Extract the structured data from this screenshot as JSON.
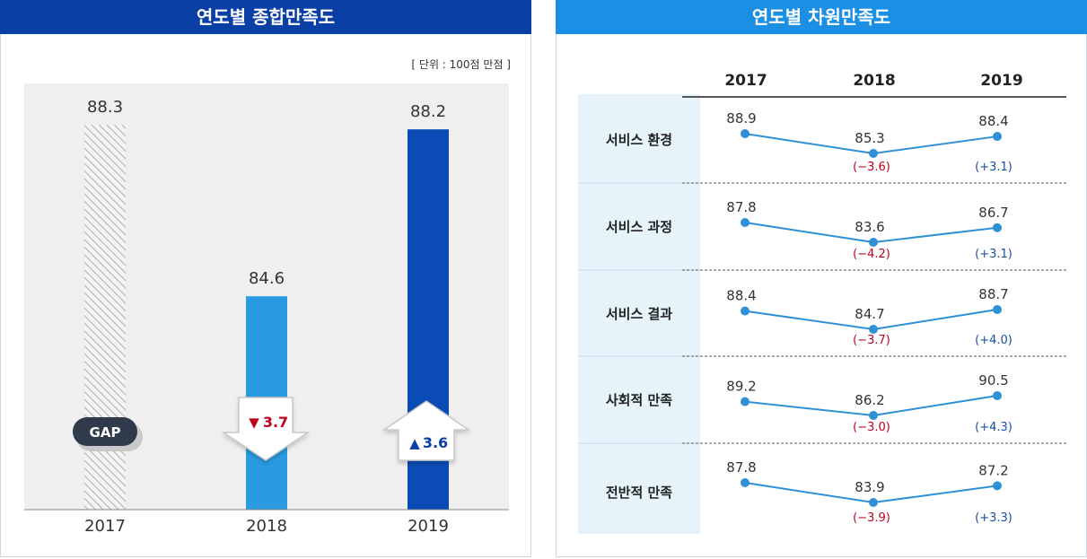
{
  "left": {
    "title": "연도별 종합만족도",
    "unit_note": "[ 단위 : 100점 만점 ]",
    "gap_label": "GAP",
    "changes": [
      {
        "direction": "down",
        "symbol": "▼",
        "value": "3.7",
        "color": "#c0001a"
      },
      {
        "direction": "up",
        "symbol": "▲",
        "value": "3.6",
        "color": "#0a3fa6"
      }
    ]
  },
  "right": {
    "title": "연도별 차원만족도",
    "years": [
      "2017",
      "2018",
      "2019"
    ],
    "rows": [
      {
        "label": "서비스 환경",
        "values": [
          88.9,
          85.3,
          88.4
        ],
        "value_labels": [
          "88.9",
          "85.3",
          "88.4"
        ],
        "changes": [
          "(−3.6)",
          "(+3.1)"
        ]
      },
      {
        "label": "서비스 과정",
        "values": [
          87.8,
          83.6,
          86.7
        ],
        "value_labels": [
          "87.8",
          "83.6",
          "86.7"
        ],
        "changes": [
          "(−4.2)",
          "(+3.1)"
        ]
      },
      {
        "label": "서비스 결과",
        "values": [
          88.4,
          84.7,
          88.7
        ],
        "value_labels": [
          "88.4",
          "84.7",
          "88.7"
        ],
        "changes": [
          "(−3.7)",
          "(+4.0)"
        ]
      },
      {
        "label": "사회적 만족",
        "values": [
          89.2,
          86.2,
          90.5
        ],
        "value_labels": [
          "89.2",
          "86.2",
          "90.5"
        ],
        "changes": [
          "(−3.0)",
          "(+4.3)"
        ]
      },
      {
        "label": "전반적 만족",
        "values": [
          87.8,
          83.9,
          87.2
        ],
        "value_labels": [
          "87.8",
          "83.9",
          "87.2"
        ],
        "changes": [
          "(−3.9)",
          "(+3.3)"
        ]
      }
    ],
    "colors": {
      "line": "#2e90d6",
      "decrease": "#c0001a",
      "increase": "#1a4fa0"
    }
  },
  "chart_data": [
    {
      "type": "bar",
      "title": "연도별 종합만족도",
      "categories": [
        "2017",
        "2018",
        "2019"
      ],
      "values": [
        88.3,
        84.6,
        88.2
      ],
      "value_labels": [
        "88.3",
        "84.6",
        "88.2"
      ],
      "colors": [
        "#hatched",
        "#2a9be0",
        "#0a4bb5"
      ],
      "ylim": [
        80,
        90
      ],
      "ylabel": "",
      "xlabel": ""
    },
    {
      "type": "line",
      "title": "연도별 차원만족도",
      "categories": [
        "2017",
        "2018",
        "2019"
      ],
      "series": [
        {
          "name": "서비스 환경",
          "values": [
            88.9,
            85.3,
            88.4
          ]
        },
        {
          "name": "서비스 과정",
          "values": [
            87.8,
            83.6,
            86.7
          ]
        },
        {
          "name": "서비스 결과",
          "values": [
            88.4,
            84.7,
            88.7
          ]
        },
        {
          "name": "사회적 만족",
          "values": [
            89.2,
            86.2,
            90.5
          ]
        },
        {
          "name": "전반적 만족",
          "values": [
            87.8,
            83.9,
            87.2
          ]
        }
      ]
    }
  ]
}
